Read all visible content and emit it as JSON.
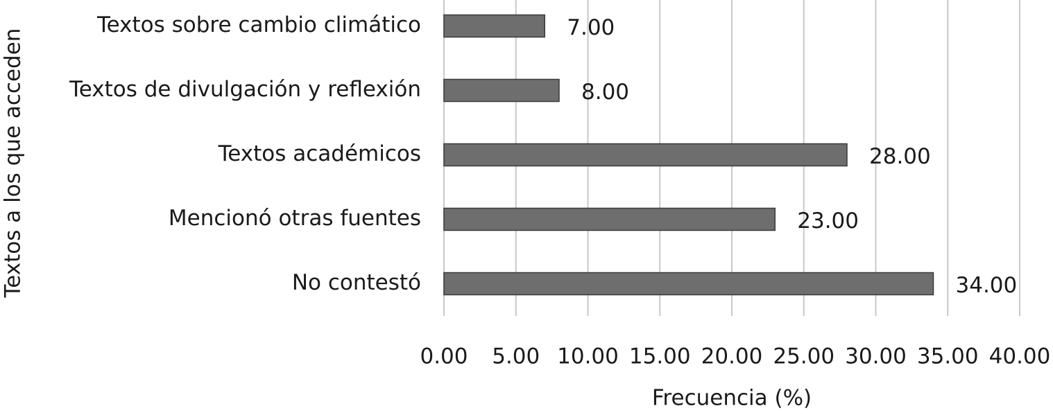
{
  "chart_data": {
    "type": "bar",
    "orientation": "horizontal",
    "x_axis_label": "Frecuencia (%)",
    "y_axis_label": "Textos a los que acceden",
    "categories": [
      "Textos sobre cambio climático",
      "Textos de divulgación y reflexión",
      "Textos académicos",
      "Mencionó otras fuentes",
      "No contestó"
    ],
    "values": [
      7,
      8,
      28,
      23,
      34
    ],
    "value_labels": [
      "7.00",
      "8.00",
      "28.00",
      "23.00",
      "34.00"
    ],
    "color": "#6e6e6e",
    "xlim": [
      0,
      40
    ],
    "xticks": [
      {
        "value": 0,
        "label": "0.00"
      },
      {
        "value": 5,
        "label": "5.00"
      },
      {
        "value": 10,
        "label": "10.00"
      },
      {
        "value": 15,
        "label": "15.00"
      },
      {
        "value": 20,
        "label": "20.00"
      },
      {
        "value": 25,
        "label": "25.00"
      },
      {
        "value": 30,
        "label": "30.00"
      },
      {
        "value": 35,
        "label": "35.00"
      },
      {
        "value": 40,
        "label": "40.00"
      }
    ],
    "grid": true
  }
}
